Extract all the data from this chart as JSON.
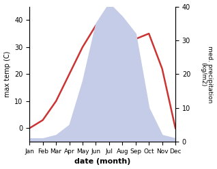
{
  "months": [
    "Jan",
    "Feb",
    "Mar",
    "Apr",
    "May",
    "Jun",
    "Jul",
    "Aug",
    "Sep",
    "Oct",
    "Nov",
    "Dec"
  ],
  "temperature": [
    0,
    3,
    10,
    20,
    30,
    38,
    42,
    38,
    33,
    35,
    22,
    0
  ],
  "precipitation": [
    1,
    1,
    2,
    5,
    18,
    35,
    41,
    37,
    32,
    10,
    2,
    1
  ],
  "temp_color": "#cc3333",
  "precip_fill_color": "#c5cce8",
  "temp_ylim_min": -5,
  "temp_ylim_max": 45,
  "precip_ylim_min": 0,
  "precip_ylim_max": 40,
  "left_ticks": [
    0,
    10,
    20,
    30,
    40
  ],
  "right_ticks": [
    0,
    10,
    20,
    30,
    40
  ],
  "xlabel": "date (month)",
  "ylabel_left": "max temp (C)",
  "ylabel_right": "med. precipitation\n(kg/m2)",
  "figsize": [
    3.18,
    2.47
  ],
  "dpi": 100
}
